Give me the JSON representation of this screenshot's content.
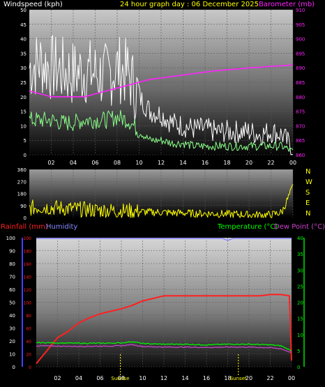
{
  "header": {
    "wind_label": "Windspeed (kph)",
    "date_label": "24 hour graph day : 06 December 2025",
    "baro_label": "Barometer (mb)",
    "rain_label": "Rainfall (mm)",
    "hum_label": "Humidity",
    "temp_label": "Temperature (°C)",
    "dew_label": "Dew Point (°C)"
  },
  "colors": {
    "wind_gust": "#ffffff",
    "wind_avg": "#88ff88",
    "barometer": "#ff22ff",
    "direction": "#ffff00",
    "rainfall": "#ff2020",
    "humidity": "#8888ff",
    "temperature": "#00ff00",
    "dew_point": "#cc44cc",
    "label_yellow": "#ffff00"
  },
  "chart_data": [
    {
      "id": "wind",
      "type": "line",
      "x_ticks": [
        "02",
        "04",
        "06",
        "08",
        "10",
        "12",
        "14",
        "16",
        "18",
        "20",
        "22",
        "00"
      ],
      "y_left": {
        "label": "Windspeed (kph)",
        "min": 0,
        "max": 50,
        "ticks": [
          0,
          5,
          10,
          15,
          20,
          25,
          30,
          35,
          40,
          45,
          50
        ]
      },
      "y_right": {
        "label": "Barometer (mb)",
        "min": 860,
        "max": 910,
        "ticks": [
          860,
          865,
          870,
          875,
          880,
          885,
          890,
          895,
          900,
          905,
          910
        ]
      },
      "series": [
        {
          "name": "Gust",
          "axis": "left",
          "x": [
            0,
            1,
            2,
            3,
            4,
            5,
            6,
            7,
            8,
            9,
            10,
            11,
            12,
            13,
            14,
            15,
            16,
            17,
            18,
            19,
            20,
            21,
            22,
            23,
            24
          ],
          "values": [
            30,
            32,
            30,
            29,
            28,
            29,
            28,
            27,
            30,
            28,
            20,
            15,
            14,
            11,
            10,
            9,
            9,
            8,
            8,
            8,
            8,
            7,
            8,
            7,
            2
          ]
        },
        {
          "name": "Average",
          "axis": "left",
          "x": [
            0,
            1,
            2,
            3,
            4,
            5,
            6,
            7,
            8,
            9,
            10,
            11,
            12,
            13,
            14,
            15,
            16,
            17,
            18,
            19,
            20,
            21,
            22,
            23,
            24
          ],
          "values": [
            12,
            12,
            12,
            11,
            11,
            12,
            12,
            12,
            13,
            12,
            8,
            5,
            5,
            4,
            4,
            3,
            3,
            3,
            3,
            3,
            3,
            3,
            3,
            3,
            1
          ]
        },
        {
          "name": "Barometer",
          "axis": "right",
          "x": [
            0,
            1,
            2,
            3,
            4,
            5,
            6,
            7,
            8,
            9,
            10,
            11,
            12,
            13,
            14,
            15,
            16,
            17,
            18,
            19,
            20,
            21,
            22,
            23,
            24
          ],
          "values": [
            882,
            881,
            880,
            880,
            880,
            880,
            881,
            882,
            883,
            884,
            885,
            886,
            886.5,
            887,
            887.5,
            888,
            888.5,
            889,
            889.3,
            889.6,
            890,
            890.2,
            890.5,
            890.7,
            891
          ]
        }
      ]
    },
    {
      "id": "direction",
      "type": "line",
      "x_ticks": [],
      "y_left": {
        "min": 0,
        "max": 360,
        "ticks": [
          0,
          45,
          90,
          135,
          180,
          225,
          270,
          315,
          360
        ]
      },
      "y_right_labels": [
        "N",
        "W",
        "S",
        "E",
        "N"
      ],
      "series": [
        {
          "name": "Direction",
          "x": [
            0,
            1,
            2,
            3,
            4,
            5,
            6,
            7,
            8,
            9,
            10,
            11,
            12,
            13,
            14,
            15,
            16,
            17,
            18,
            19,
            20,
            21,
            22,
            23,
            24
          ],
          "values": [
            70,
            80,
            75,
            70,
            65,
            60,
            55,
            55,
            50,
            50,
            45,
            40,
            40,
            35,
            35,
            30,
            30,
            30,
            25,
            25,
            20,
            20,
            20,
            40,
            230
          ]
        }
      ]
    },
    {
      "id": "temp_rain",
      "type": "line",
      "x_ticks": [
        "02",
        "04",
        "06",
        "08",
        "10",
        "12",
        "14",
        "16",
        "18",
        "20",
        "22",
        "00"
      ],
      "y_outer": {
        "label": "Humidity",
        "min": 0,
        "max": 100,
        "ticks": [
          0,
          10,
          20,
          30,
          40,
          50,
          60,
          70,
          80,
          90,
          100
        ]
      },
      "y_inner": {
        "label": "Rainfall (mm)",
        "min": 0,
        "max": 200,
        "ticks": [
          0,
          20,
          40,
          60,
          80,
          100,
          120,
          140,
          160,
          180,
          200
        ]
      },
      "y_right": {
        "label": "Temperature (°C)",
        "min": 0,
        "max": 40,
        "ticks": [
          0,
          5,
          10,
          15,
          20,
          25,
          30,
          35,
          40
        ]
      },
      "markers": [
        {
          "label": "Sunrise",
          "x": 7.9
        },
        {
          "label": "Sunset",
          "x": 19.0
        }
      ],
      "series": [
        {
          "name": "Humidity",
          "axis": "outer",
          "x": [
            0,
            6,
            12,
            17.5,
            18,
            18.5,
            19,
            24
          ],
          "values": [
            99.5,
            99.5,
            99.5,
            99.5,
            98,
            99.5,
            99.5,
            99.5
          ]
        },
        {
          "name": "Rainfall",
          "axis": "inner",
          "x": [
            0,
            1,
            2,
            3,
            4,
            5,
            6,
            7,
            8,
            9,
            10,
            11,
            12,
            13,
            14,
            15,
            16,
            17,
            18,
            19,
            20,
            21,
            22,
            23,
            23.8,
            24
          ],
          "values": [
            5,
            25,
            45,
            55,
            68,
            76,
            82,
            86,
            90,
            95,
            102,
            106,
            110,
            110,
            110,
            110,
            110,
            110,
            110,
            110,
            110,
            110,
            112,
            112,
            110,
            10
          ]
        },
        {
          "name": "Temperature",
          "axis": "right",
          "x": [
            0,
            2,
            4,
            6,
            8,
            9,
            10,
            12,
            14,
            16,
            18,
            20,
            22,
            23,
            24
          ],
          "values": [
            7.5,
            7.4,
            7.3,
            7.3,
            7.4,
            7.8,
            7.2,
            7.0,
            7.0,
            6.8,
            7.0,
            7.0,
            6.8,
            6.5,
            5.0
          ]
        },
        {
          "name": "Dew Point",
          "axis": "right",
          "x": [
            0,
            2,
            4,
            6,
            8,
            9,
            10,
            12,
            14,
            16,
            18,
            20,
            22,
            23,
            24
          ],
          "values": [
            6.5,
            6.4,
            6.3,
            6.4,
            6.5,
            6.9,
            6.3,
            6.1,
            6.1,
            6.0,
            6.1,
            6.1,
            5.9,
            5.6,
            4.4
          ]
        }
      ]
    }
  ]
}
